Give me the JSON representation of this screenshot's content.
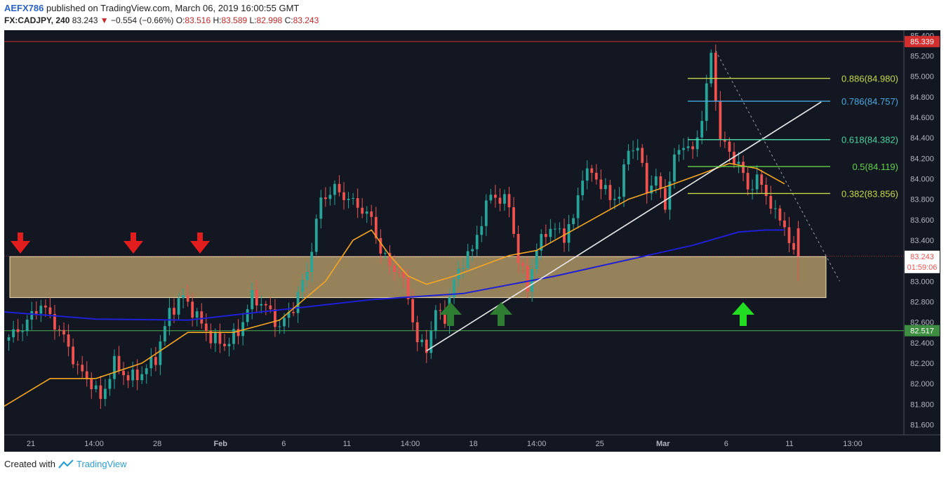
{
  "header": {
    "author": "AEFX786",
    "published": "published on TradingView.com, March 06, 2019 16:00:55 GMT",
    "symbol": "FX:CADJPY, 240",
    "last": "83.243",
    "change": "−0.554 (−0.66%)",
    "o_label": "O:",
    "o": "83.516",
    "h_label": "H:",
    "h": "83.589",
    "l_label": "L:",
    "l": "82.998",
    "c_label": "C:",
    "c": "83.243"
  },
  "footer": {
    "created": "Created with",
    "brand": "TradingView"
  },
  "colors": {
    "background": "#131722",
    "bull": "#26a69a",
    "bear": "#ef5350",
    "ema_fast": "#f5a623",
    "ema_slow": "#1f1fd6",
    "zone": "#c8aa70",
    "support": "#4caf50",
    "resistance": "#d32f2f"
  },
  "chart_data": {
    "type": "candlestick",
    "ylim": [
      81.5,
      85.45
    ],
    "y_ticks": [
      "85.400",
      "85.200",
      "85.000",
      "84.800",
      "84.600",
      "84.400",
      "84.200",
      "84.000",
      "83.800",
      "83.600",
      "83.400",
      "83.200",
      "83.000",
      "82.800",
      "82.600",
      "82.400",
      "82.200",
      "82.000",
      "81.800",
      "81.600"
    ],
    "x_ticks": [
      "21",
      "14:00",
      "28",
      "Feb",
      "6",
      "11",
      "14:00",
      "18",
      "14:00",
      "25",
      "Mar",
      "6",
      "11",
      "13:00"
    ],
    "price_badges": {
      "top": "85.339",
      "current": "83.243",
      "countdown": "01:59:06",
      "bottom": "82.517"
    },
    "support_level": 82.517,
    "resistance_level": 85.339,
    "zone": [
      82.84,
      83.24
    ],
    "fib_levels": [
      {
        "label": "0.886(84.980)",
        "value": 84.98,
        "color": "#c6d84a"
      },
      {
        "label": "0.786(84.757)",
        "value": 84.757,
        "color": "#4aa8e0"
      },
      {
        "label": "0.618(84.382)",
        "value": 84.382,
        "color": "#4cd2a0"
      },
      {
        "label": "0.5(84.119)",
        "value": 84.119,
        "color": "#62d24a"
      },
      {
        "label": "0.382(83.856)",
        "value": 83.856,
        "color": "#c6d84a"
      }
    ],
    "price_path": [
      [
        0,
        82.42
      ],
      [
        4,
        82.55
      ],
      [
        8,
        82.78
      ],
      [
        10,
        82.65
      ],
      [
        13,
        82.45
      ],
      [
        16,
        82.15
      ],
      [
        19,
        82.0
      ],
      [
        21,
        81.85
      ],
      [
        24,
        82.2
      ],
      [
        27,
        82.05
      ],
      [
        30,
        82.1
      ],
      [
        33,
        82.25
      ],
      [
        36,
        82.7
      ],
      [
        39,
        82.85
      ],
      [
        42,
        82.65
      ],
      [
        45,
        82.45
      ],
      [
        48,
        82.38
      ],
      [
        51,
        82.5
      ],
      [
        54,
        82.85
      ],
      [
        57,
        82.75
      ],
      [
        60,
        82.55
      ],
      [
        63,
        82.75
      ],
      [
        66,
        83.1
      ],
      [
        69,
        83.8
      ],
      [
        72,
        83.9
      ],
      [
        75,
        83.8
      ],
      [
        78,
        83.7
      ],
      [
        80,
        83.6
      ],
      [
        82,
        83.3
      ],
      [
        84,
        83.15
      ],
      [
        86,
        83.1
      ],
      [
        88,
        82.85
      ],
      [
        90,
        82.4
      ],
      [
        92,
        82.35
      ],
      [
        94,
        82.7
      ],
      [
        96,
        82.65
      ],
      [
        98,
        83.0
      ],
      [
        100,
        83.2
      ],
      [
        102,
        83.3
      ],
      [
        104,
        83.6
      ],
      [
        106,
        83.85
      ],
      [
        108,
        83.8
      ],
      [
        110,
        83.75
      ],
      [
        112,
        83.2
      ],
      [
        114,
        82.95
      ],
      [
        116,
        83.3
      ],
      [
        118,
        83.5
      ],
      [
        120,
        83.5
      ],
      [
        122,
        83.45
      ],
      [
        124,
        83.6
      ],
      [
        126,
        84.05
      ],
      [
        128,
        84.05
      ],
      [
        130,
        83.95
      ],
      [
        132,
        83.8
      ],
      [
        134,
        83.85
      ],
      [
        136,
        84.3
      ],
      [
        138,
        84.3
      ],
      [
        140,
        83.9
      ],
      [
        142,
        84.0
      ],
      [
        144,
        83.75
      ],
      [
        146,
        84.2
      ],
      [
        148,
        84.35
      ],
      [
        150,
        84.25
      ],
      [
        152,
        84.6
      ],
      [
        154,
        85.2
      ],
      [
        156,
        84.4
      ],
      [
        158,
        84.25
      ],
      [
        160,
        84.15
      ],
      [
        162,
        83.9
      ],
      [
        164,
        84.0
      ],
      [
        166,
        83.85
      ],
      [
        168,
        83.65
      ],
      [
        170,
        83.55
      ],
      [
        172,
        83.24
      ]
    ],
    "ema_fast": [
      [
        0,
        81.78
      ],
      [
        10,
        82.05
      ],
      [
        20,
        82.05
      ],
      [
        30,
        82.2
      ],
      [
        40,
        82.5
      ],
      [
        50,
        82.5
      ],
      [
        60,
        82.62
      ],
      [
        70,
        83.0
      ],
      [
        76,
        83.4
      ],
      [
        80,
        83.5
      ],
      [
        84,
        83.25
      ],
      [
        88,
        83.05
      ],
      [
        92,
        82.97
      ],
      [
        98,
        83.05
      ],
      [
        104,
        83.15
      ],
      [
        110,
        83.25
      ],
      [
        116,
        83.3
      ],
      [
        122,
        83.45
      ],
      [
        128,
        83.6
      ],
      [
        136,
        83.8
      ],
      [
        144,
        83.92
      ],
      [
        152,
        84.05
      ],
      [
        158,
        84.15
      ],
      [
        164,
        84.1
      ],
      [
        170,
        83.95
      ]
    ],
    "ema_slow": [
      [
        0,
        82.7
      ],
      [
        20,
        82.63
      ],
      [
        40,
        82.62
      ],
      [
        60,
        82.72
      ],
      [
        80,
        82.82
      ],
      [
        100,
        82.88
      ],
      [
        120,
        83.05
      ],
      [
        140,
        83.25
      ],
      [
        150,
        83.35
      ],
      [
        160,
        83.48
      ],
      [
        166,
        83.5
      ],
      [
        170,
        83.5
      ]
    ],
    "trendline": {
      "from": [
        92,
        82.32
      ],
      "to": [
        178,
        84.75
      ]
    },
    "projection": {
      "from": [
        155,
        85.25
      ],
      "to": [
        182,
        83.0
      ]
    },
    "resistance_arrow_x": [
      4,
      28,
      42
    ],
    "support_arrow_x": [
      97,
      108,
      162
    ]
  }
}
